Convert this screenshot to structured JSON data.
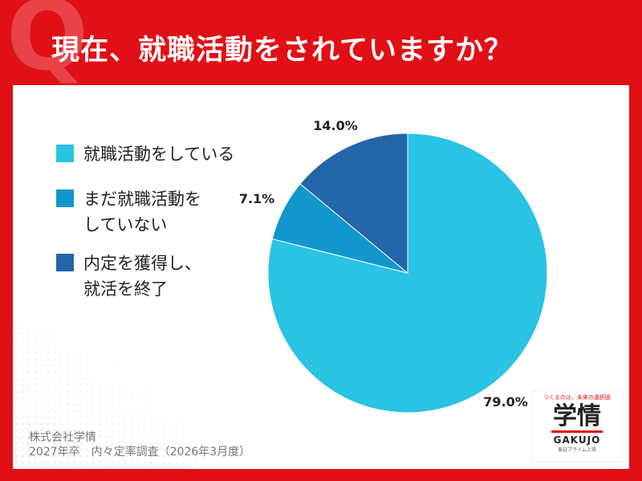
{
  "header": {
    "q_letter": "Q",
    "title": "現在、就職活動をされていますか？"
  },
  "chart_data": {
    "type": "pie",
    "title": "現在、就職活動をされていますか？",
    "slices": [
      {
        "label": "就職活動をしている",
        "value": 79.0,
        "value_label": "79.0%",
        "color": "#29c3e3"
      },
      {
        "label": "まだ就職活動を\nしていない",
        "value": 7.1,
        "value_label": "7.1%",
        "color": "#1197cc"
      },
      {
        "label": "内定を獲得し、\n就活を終了",
        "value": 14.0,
        "value_label": "14.0%",
        "color": "#2366a9"
      }
    ],
    "start_angle": "12 o'clock",
    "direction": "clockwise",
    "legend_position": "left"
  },
  "footer": {
    "line1": "株式会社学情",
    "line2": "2027年卒　内々定率調査（2026年3月度）"
  },
  "logo": {
    "tagline": "つくるのは、未来の選択肢",
    "main": "学情",
    "en": "GAKUJO",
    "sub": "東証プライム上場"
  }
}
